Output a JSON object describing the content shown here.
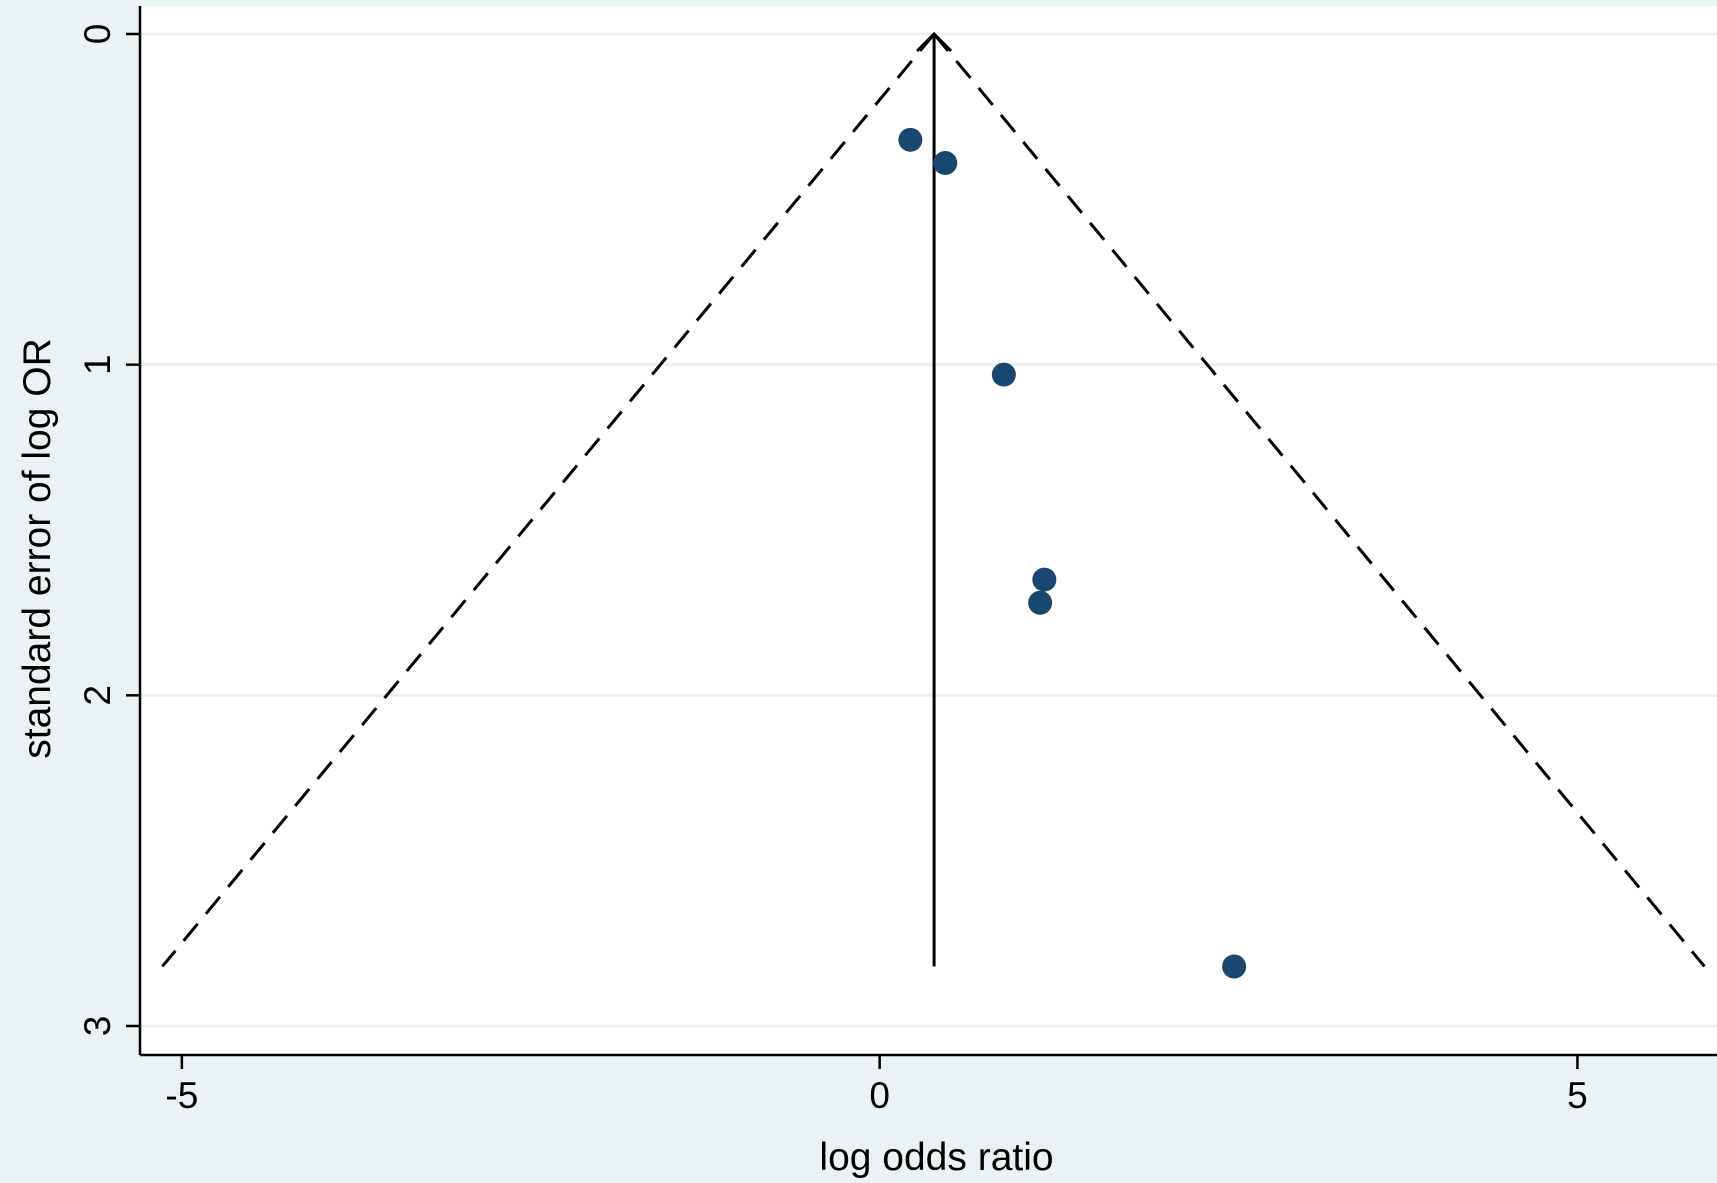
{
  "chart_data": {
    "type": "scatter",
    "title": "",
    "xlabel": "log odds ratio",
    "ylabel": "standard error of log OR",
    "xlim": [
      -5.3,
      6.0
    ],
    "ylim": [
      3.0,
      0.0
    ],
    "y_reversed": true,
    "x_ticks": [
      -5,
      0,
      5
    ],
    "x_tick_labels": [
      "-5",
      "0",
      "5"
    ],
    "y_ticks": [
      0,
      1,
      2,
      3
    ],
    "y_tick_labels": [
      "0",
      "1",
      "2",
      "3"
    ],
    "grid": "horizontal",
    "legend": "none",
    "pooled_estimate": 0.39,
    "funnel": {
      "center": 0.39,
      "apex_se": 0,
      "base_se": 2.82,
      "left_x": -5.14,
      "right_x": 5.91,
      "style": "dashed"
    },
    "points": [
      {
        "x": 0.22,
        "y": 0.32
      },
      {
        "x": 0.47,
        "y": 0.39
      },
      {
        "x": 0.89,
        "y": 1.03
      },
      {
        "x": 1.18,
        "y": 1.65
      },
      {
        "x": 1.15,
        "y": 1.72
      },
      {
        "x": 2.54,
        "y": 2.82
      }
    ],
    "colors": {
      "background": "#eaf2f3",
      "plot_area": "#ffffff",
      "gridline": "#eaf2f3",
      "marker": "#1a476f",
      "line": "#000000"
    }
  }
}
